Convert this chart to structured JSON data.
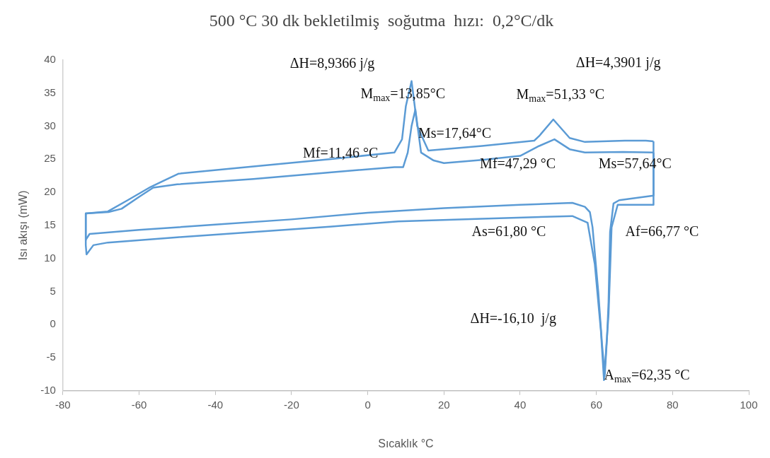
{
  "chart_data": {
    "type": "line",
    "title": "500 °C 30 dk bekletilmiş  soğutma  hızı:  0,2°C/dk",
    "xlabel": "Sıcaklık °C",
    "ylabel": "Isı akışı (mW)",
    "xlim": [
      -80,
      100
    ],
    "xticks": [
      -80,
      -60,
      -40,
      -20,
      0,
      20,
      40,
      60,
      80,
      100
    ],
    "ylim": [
      -10,
      40
    ],
    "yticks": [
      -10,
      -5,
      0,
      5,
      10,
      15,
      20,
      25,
      30,
      35,
      40
    ],
    "grid": false,
    "marker": "none",
    "series": [
      {
        "color": "#5b9bd5",
        "x": [
          -74,
          -68.2,
          -63,
          -57,
          -49.7,
          -30,
          -10,
          7,
          9,
          10,
          11.5,
          13,
          15.9,
          30,
          43.7,
          45,
          48.7,
          53,
          57,
          67.5,
          73,
          75
        ],
        "values": [
          16.8,
          17.1,
          18.8,
          20.8,
          22.8,
          23.9,
          25,
          26,
          28,
          33,
          36.8,
          30,
          26.3,
          27,
          27.8,
          28.5,
          31,
          28.2,
          27.6,
          27.8,
          27.8,
          27.7
        ]
      },
      {
        "color": "#5b9bd5",
        "x": [
          -74,
          -68,
          -64.6,
          -60,
          -56.3,
          -50,
          -30,
          -10,
          7,
          9.3,
          10.5,
          11.5,
          12.5,
          14,
          17.3,
          20,
          30,
          40,
          45,
          49,
          53,
          57,
          67,
          75
        ],
        "values": [
          16.8,
          17,
          17.5,
          19.3,
          20.7,
          21.2,
          22,
          23,
          23.8,
          23.8,
          26,
          30,
          32.5,
          26,
          24.8,
          24.4,
          24.9,
          25.5,
          27,
          28,
          26.5,
          26,
          26.1,
          26
        ]
      },
      {
        "color": "#5b9bd5",
        "x": [
          -74,
          -74,
          -73,
          -60,
          -40,
          -20,
          0,
          20,
          40,
          53.7,
          57,
          58.3,
          59,
          60.5,
          61.5,
          62.2,
          62.8,
          63.2,
          63.6,
          64.5,
          66,
          75,
          75
        ],
        "values": [
          16.8,
          12.8,
          13.7,
          14.3,
          15.1,
          15.9,
          16.9,
          17.6,
          18.1,
          18.4,
          17.8,
          17,
          14.7,
          5,
          -3,
          -7.8,
          -2,
          3.4,
          14,
          18.3,
          18.8,
          19.5,
          27.7
        ]
      },
      {
        "color": "#5b9bd5",
        "x": [
          -74,
          -74,
          -73.8,
          -72,
          -68.2,
          -50,
          -30,
          -10,
          8,
          30,
          53.7,
          57.7,
          59.6,
          61.2,
          62,
          63.2,
          64,
          65.6,
          75,
          75
        ],
        "values": [
          16.8,
          12,
          10.6,
          12,
          12.4,
          13.2,
          14,
          14.8,
          15.6,
          16,
          16.4,
          15.4,
          9.1,
          -1,
          -8.4,
          1.5,
          14.7,
          18.1,
          18.1,
          26
        ]
      }
    ],
    "annotations": [
      "ΔH=8,9366 j/g",
      "M$_{max}$=13,85°C",
      "ΔH=4,3901 j/g",
      "M$_{max}$=51,33 °C",
      "Ms=17,64°C",
      "Mf=11,46 °C",
      "Mf=47,29 °C",
      "Ms=57,64°C",
      "As=61,80 °C",
      "Af=66,77 °C",
      "ΔH=-16,10  j/g",
      "A$_{max}$=62,35 °C"
    ]
  }
}
